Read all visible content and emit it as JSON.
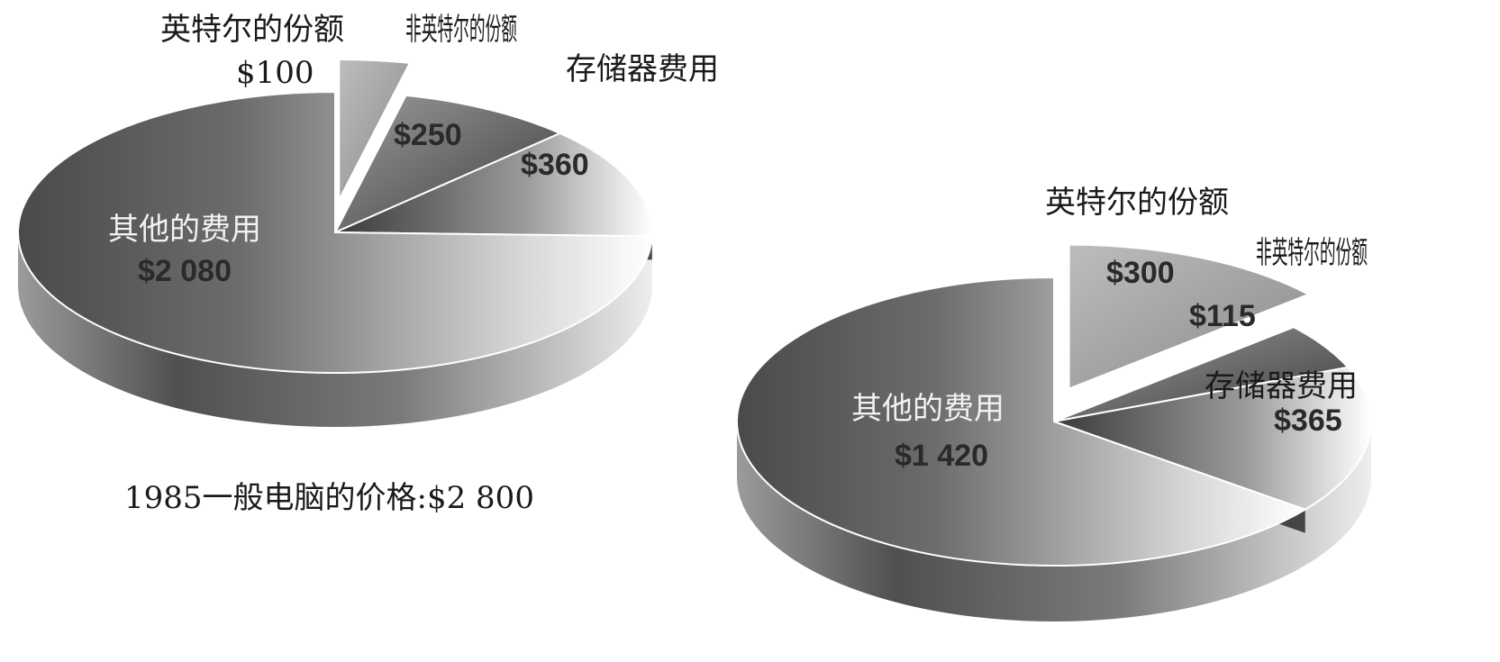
{
  "chart_data": [
    {
      "type": "pie",
      "caption": "1985一般电脑的价格:$2 800",
      "slices": [
        {
          "label": "英特尔的份额",
          "value_label": "$100",
          "value": 100,
          "exploded": true
        },
        {
          "label": "非英特尔的份额",
          "value_label": "$250",
          "value": 250,
          "exploded": false
        },
        {
          "label": "存储器费用",
          "value_label": "$360",
          "value": 360,
          "exploded": false
        },
        {
          "label": "其他的费用",
          "value_label": "$2 080",
          "value": 2080,
          "exploded": false
        }
      ]
    },
    {
      "type": "pie",
      "caption": "",
      "slices": [
        {
          "label": "英特尔的份额",
          "value_label": "$300",
          "value": 300,
          "exploded": true
        },
        {
          "label": "非英特尔的份额",
          "value_label": "$115",
          "value": 115,
          "exploded": false
        },
        {
          "label": "存储器费用",
          "value_label": "$365",
          "value": 365,
          "exploded": false
        },
        {
          "label": "其他的费用",
          "value_label": "$1 420",
          "value": 1420,
          "exploded": false
        }
      ]
    }
  ]
}
